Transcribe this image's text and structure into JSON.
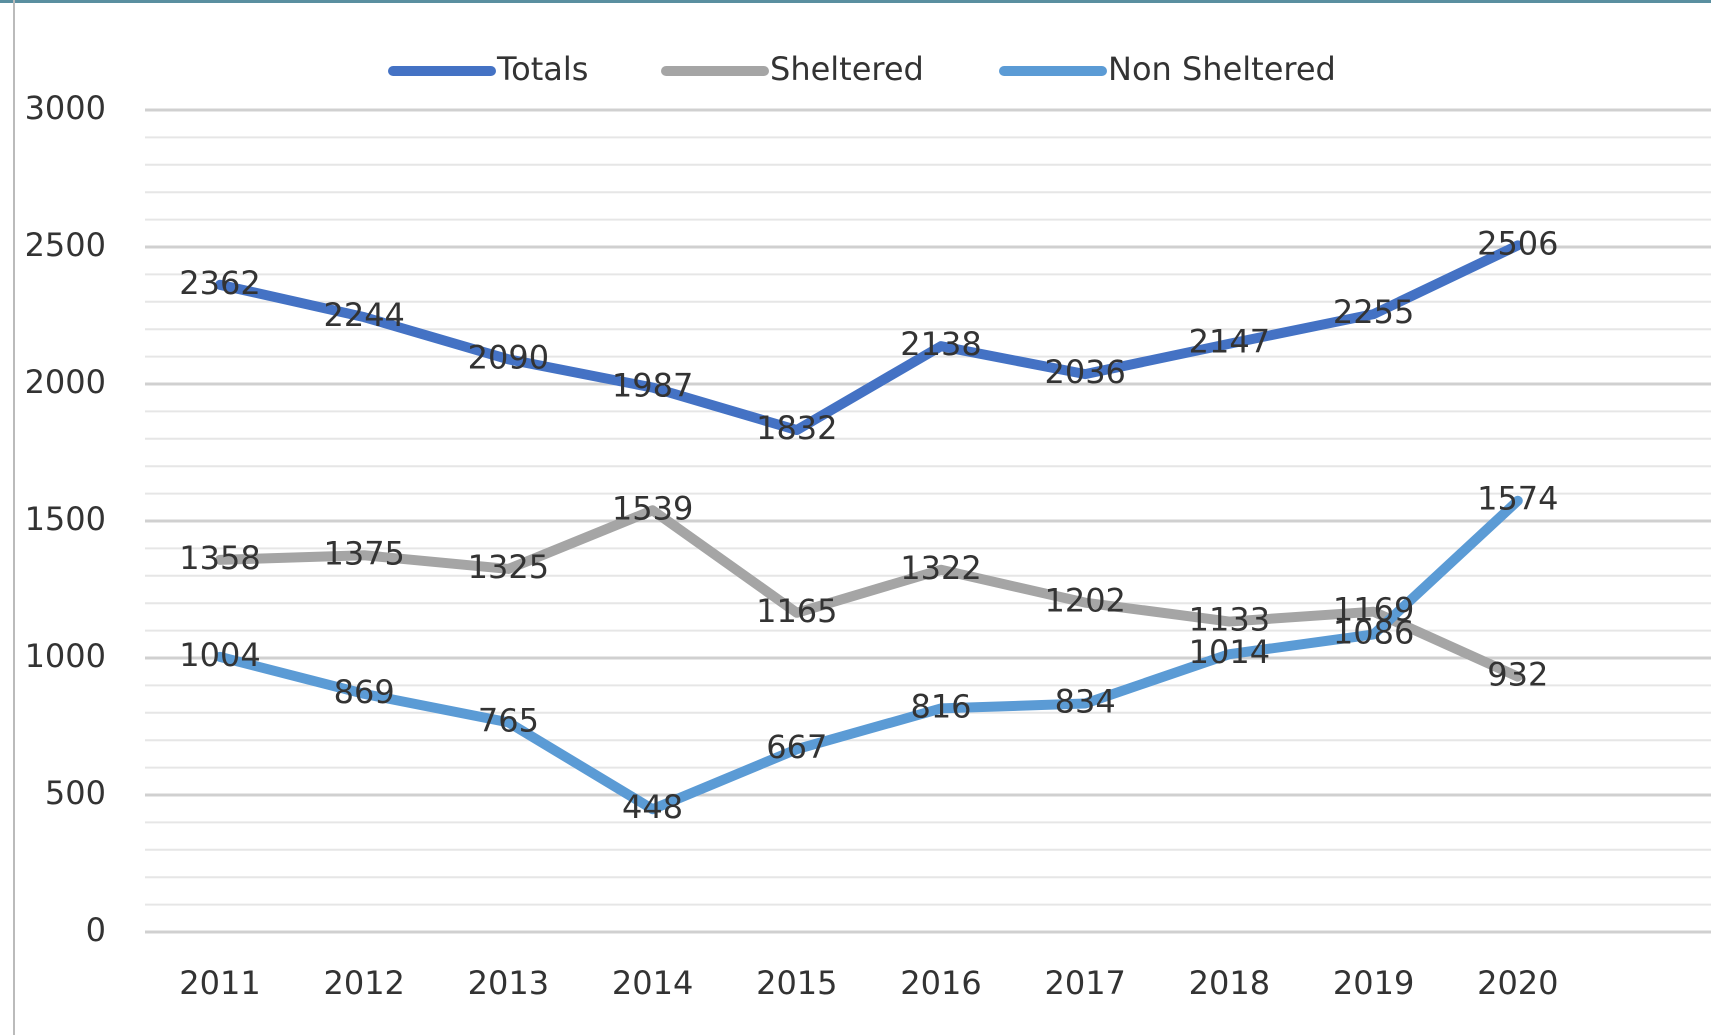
{
  "chart_data": {
    "type": "line",
    "categories": [
      "2011",
      "2012",
      "2013",
      "2014",
      "2015",
      "2016",
      "2017",
      "2018",
      "2019",
      "2020"
    ],
    "series": [
      {
        "name": "Totals",
        "color": "#4472c4",
        "values": [
          2362,
          2244,
          2090,
          1987,
          1832,
          2138,
          2036,
          2147,
          2255,
          2506
        ]
      },
      {
        "name": "Sheltered",
        "color": "#a5a5a5",
        "values": [
          1358,
          1375,
          1325,
          1539,
          1165,
          1322,
          1202,
          1133,
          1169,
          932
        ]
      },
      {
        "name": "Non Sheltered",
        "color": "#5b9bd5",
        "values": [
          1004,
          869,
          765,
          448,
          667,
          816,
          834,
          1014,
          1086,
          1574
        ]
      }
    ],
    "ylim": [
      0,
      3000
    ],
    "yticks": [
      0,
      500,
      1000,
      1500,
      2000,
      2500,
      3000
    ],
    "grid": true,
    "minor_grid": true,
    "legend": "top",
    "data_labels": true
  }
}
